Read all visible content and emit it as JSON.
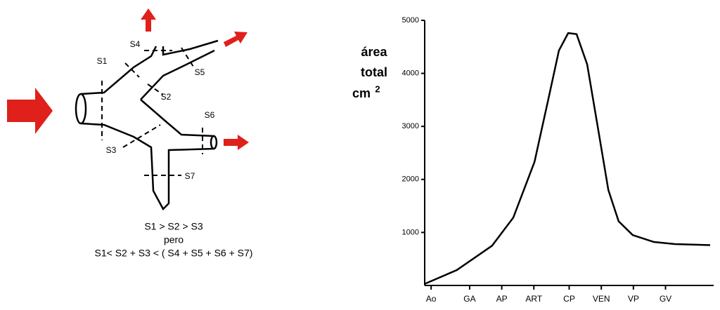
{
  "diagram": {
    "labels": [
      "S1",
      "S2",
      "S3",
      "S4",
      "S5",
      "S6",
      "S7"
    ],
    "caption": [
      "S1 > S2 > S3",
      "pero",
      "S1< S2 + S3 < ( S4 + S5 + S6 + S7)"
    ]
  },
  "chart_data": {
    "type": "line",
    "y_label": [
      "área",
      "total",
      "cm"
    ],
    "y_label_sup": "2",
    "x": [
      0,
      1.0,
      2.1,
      2.76,
      3.42,
      3.85,
      4.18,
      4.47,
      4.73,
      5.06,
      5.39,
      5.72,
      6.04,
      6.48,
      7.14,
      7.79,
      8.89
    ],
    "series": [
      {
        "color": "#000000",
        "values": [
          30,
          290,
          750,
          1280,
          2330,
          3510,
          4430,
          4760,
          4740,
          4170,
          2990,
          1800,
          1210,
          950,
          820,
          780,
          760
        ]
      }
    ],
    "xlim": [
      0,
      9
    ],
    "xticks": [
      {
        "value": 0.2,
        "label": "Ao"
      },
      {
        "value": 1.4,
        "label": "GA"
      },
      {
        "value": 2.4,
        "label": "AP"
      },
      {
        "value": 3.4,
        "label": "ART"
      },
      {
        "value": 4.5,
        "label": "CP"
      },
      {
        "value": 5.5,
        "label": "VEN"
      },
      {
        "value": 6.5,
        "label": "VP"
      },
      {
        "value": 7.5,
        "label": "GV"
      }
    ],
    "ylim": [
      0,
      5000
    ],
    "yticks": [
      1000,
      2000,
      3000,
      4000,
      5000
    ]
  }
}
